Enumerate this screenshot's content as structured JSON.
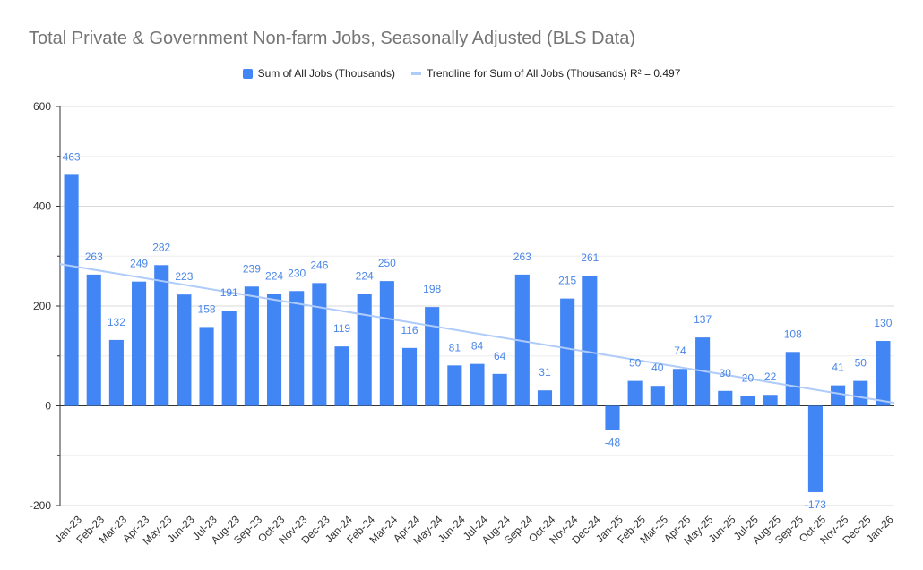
{
  "chart_data": {
    "type": "bar",
    "title": "Total Private & Government Non-farm Jobs, Seasonally Adjusted (BLS Data)",
    "legend": {
      "bar_label": "Sum of All Jobs (Thousands)",
      "trend_label": "Trendline for Sum of All Jobs (Thousands) R² = 0.497",
      "position": "top-center"
    },
    "categories": [
      "Jan-23",
      "Feb-23",
      "Mar-23",
      "Apr-23",
      "May-23",
      "Jun-23",
      "Jul-23",
      "Aug-23",
      "Sep-23",
      "Oct-23",
      "Nov-23",
      "Dec-23",
      "Jan-24",
      "Feb-24",
      "Mar-24",
      "Apr-24",
      "May-24",
      "Jun-24",
      "Jul-24",
      "Aug-24",
      "Sep-24",
      "Oct-24",
      "Nov-24",
      "Dec-24",
      "Jan-25",
      "Feb-25",
      "Mar-25",
      "Apr-25",
      "May-25",
      "Jun-25",
      "Jul-25",
      "Aug-25",
      "Sep-25",
      "Oct-25",
      "Nov-25",
      "Dec-25",
      "Jan-26"
    ],
    "values": [
      463,
      263,
      132,
      249,
      282,
      223,
      158,
      191,
      239,
      224,
      230,
      246,
      119,
      224,
      250,
      116,
      198,
      81,
      84,
      64,
      263,
      31,
      215,
      261,
      -48,
      50,
      40,
      74,
      137,
      30,
      20,
      22,
      108,
      -173,
      41,
      50,
      130
    ],
    "trendline": {
      "start": 284,
      "end": 6
    },
    "ylim": [
      -200,
      600
    ],
    "yticks": [
      -200,
      0,
      200,
      400,
      600
    ],
    "xlabel": "",
    "ylabel": "",
    "colors": {
      "bar": "#4285f4",
      "trend": "#aecbfa",
      "label": "#4a86e8",
      "grid": "#d9d9d9"
    }
  }
}
